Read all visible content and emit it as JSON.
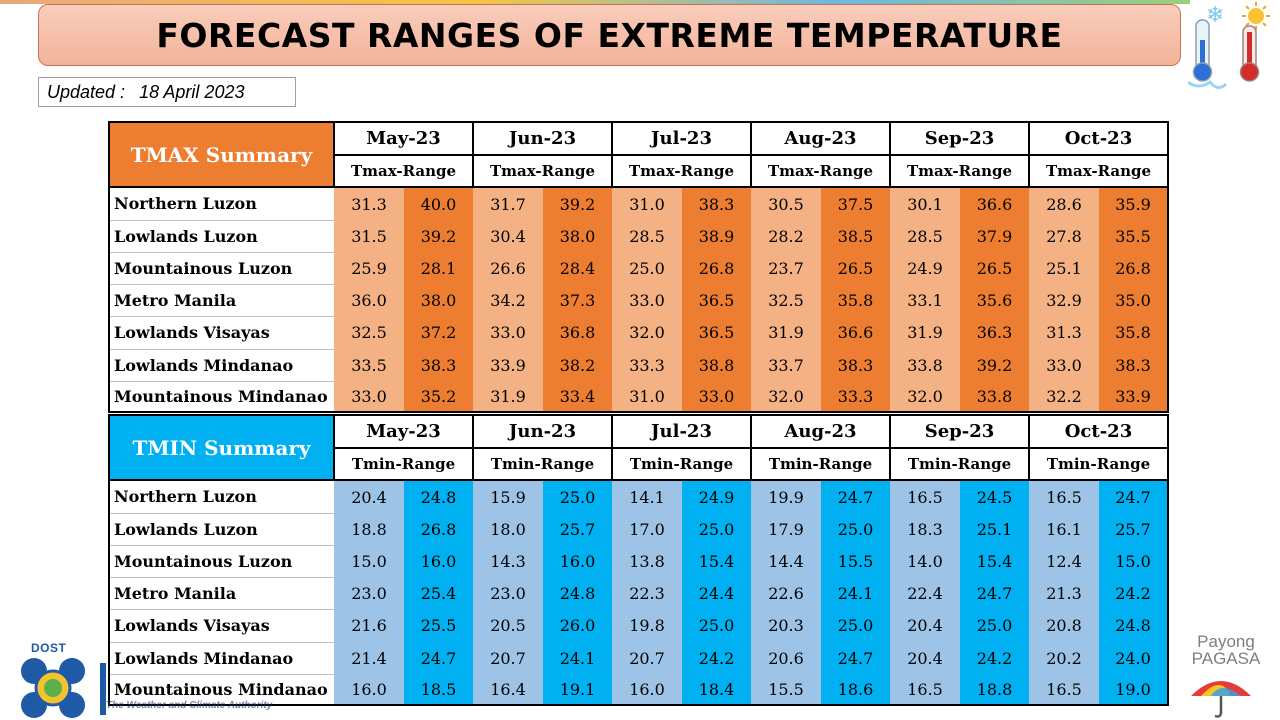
{
  "title": "FORECAST RANGES OF EXTREME TEMPERATURE",
  "updated_label": "Updated :",
  "updated_date": "18 April 2023",
  "months": [
    "May-23",
    "Jun-23",
    "Jul-23",
    "Aug-23",
    "Sep-23",
    "Oct-23"
  ],
  "regions": [
    "Northern Luzon",
    "Lowlands Luzon",
    "Mountainous Luzon",
    "Metro Manila",
    "Lowlands Visayas",
    "Lowlands Mindanao",
    "Mountainous Mindanao"
  ],
  "tmax": {
    "label": "TMAX Summary",
    "range_label": "Tmax-Range",
    "color_low": "#f4b183",
    "color_high": "#ed7d31",
    "rows": [
      [
        [
          "31.3",
          "40.0"
        ],
        [
          "31.7",
          "39.2"
        ],
        [
          "31.0",
          "38.3"
        ],
        [
          "30.5",
          "37.5"
        ],
        [
          "30.1",
          "36.6"
        ],
        [
          "28.6",
          "35.9"
        ]
      ],
      [
        [
          "31.5",
          "39.2"
        ],
        [
          "30.4",
          "38.0"
        ],
        [
          "28.5",
          "38.9"
        ],
        [
          "28.2",
          "38.5"
        ],
        [
          "28.5",
          "37.9"
        ],
        [
          "27.8",
          "35.5"
        ]
      ],
      [
        [
          "25.9",
          "28.1"
        ],
        [
          "26.6",
          "28.4"
        ],
        [
          "25.0",
          "26.8"
        ],
        [
          "23.7",
          "26.5"
        ],
        [
          "24.9",
          "26.5"
        ],
        [
          "25.1",
          "26.8"
        ]
      ],
      [
        [
          "36.0",
          "38.0"
        ],
        [
          "34.2",
          "37.3"
        ],
        [
          "33.0",
          "36.5"
        ],
        [
          "32.5",
          "35.8"
        ],
        [
          "33.1",
          "35.6"
        ],
        [
          "32.9",
          "35.0"
        ]
      ],
      [
        [
          "32.5",
          "37.2"
        ],
        [
          "33.0",
          "36.8"
        ],
        [
          "32.0",
          "36.5"
        ],
        [
          "31.9",
          "36.6"
        ],
        [
          "31.9",
          "36.3"
        ],
        [
          "31.3",
          "35.8"
        ]
      ],
      [
        [
          "33.5",
          "38.3"
        ],
        [
          "33.9",
          "38.2"
        ],
        [
          "33.3",
          "38.8"
        ],
        [
          "33.7",
          "38.3"
        ],
        [
          "33.8",
          "39.2"
        ],
        [
          "33.0",
          "38.3"
        ]
      ],
      [
        [
          "33.0",
          "35.2"
        ],
        [
          "31.9",
          "33.4"
        ],
        [
          "31.0",
          "33.0"
        ],
        [
          "32.0",
          "33.3"
        ],
        [
          "32.0",
          "33.8"
        ],
        [
          "32.2",
          "33.9"
        ]
      ]
    ]
  },
  "tmin": {
    "label": "TMIN Summary",
    "range_label": "Tmin-Range",
    "color_low": "#9dc3e6",
    "color_high": "#00b0f0",
    "rows": [
      [
        [
          "20.4",
          "24.8"
        ],
        [
          "15.9",
          "25.0"
        ],
        [
          "14.1",
          "24.9"
        ],
        [
          "19.9",
          "24.7"
        ],
        [
          "16.5",
          "24.5"
        ],
        [
          "16.5",
          "24.7"
        ]
      ],
      [
        [
          "18.8",
          "26.8"
        ],
        [
          "18.0",
          "25.7"
        ],
        [
          "17.0",
          "25.0"
        ],
        [
          "17.9",
          "25.0"
        ],
        [
          "18.3",
          "25.1"
        ],
        [
          "16.1",
          "25.7"
        ]
      ],
      [
        [
          "15.0",
          "16.0"
        ],
        [
          "14.3",
          "16.0"
        ],
        [
          "13.8",
          "15.4"
        ],
        [
          "14.4",
          "15.5"
        ],
        [
          "14.0",
          "15.4"
        ],
        [
          "12.4",
          "15.0"
        ]
      ],
      [
        [
          "23.0",
          "25.4"
        ],
        [
          "23.0",
          "24.8"
        ],
        [
          "22.3",
          "24.4"
        ],
        [
          "22.6",
          "24.1"
        ],
        [
          "22.4",
          "24.7"
        ],
        [
          "21.3",
          "24.2"
        ]
      ],
      [
        [
          "21.6",
          "25.5"
        ],
        [
          "20.5",
          "26.0"
        ],
        [
          "19.8",
          "25.0"
        ],
        [
          "20.3",
          "25.0"
        ],
        [
          "20.4",
          "25.0"
        ],
        [
          "20.8",
          "24.8"
        ]
      ],
      [
        [
          "21.4",
          "24.7"
        ],
        [
          "20.7",
          "24.1"
        ],
        [
          "20.7",
          "24.2"
        ],
        [
          "20.6",
          "24.7"
        ],
        [
          "20.4",
          "24.2"
        ],
        [
          "20.2",
          "24.0"
        ]
      ],
      [
        [
          "16.0",
          "18.5"
        ],
        [
          "16.4",
          "19.1"
        ],
        [
          "16.0",
          "18.4"
        ],
        [
          "15.5",
          "18.6"
        ],
        [
          "16.5",
          "18.8"
        ],
        [
          "16.5",
          "19.0"
        ]
      ]
    ]
  },
  "branding": {
    "dost_label": "DOST",
    "tagline": "The Weather and Climate Authority",
    "pagasa_line1": "Payong",
    "pagasa_line2": "PAGASA",
    "icons": [
      "snowflake-thermometer-icon",
      "sun-thermometer-icon",
      "dost-logo",
      "pagasa-umbrella-logo"
    ]
  }
}
